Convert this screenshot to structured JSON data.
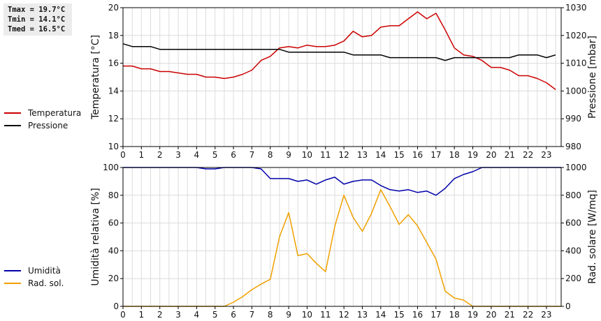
{
  "stats": {
    "tmax": "Tmax = 19.7°C",
    "tmin": "Tmin = 14.1°C",
    "tmed": "Tmed = 16.5°C"
  },
  "chart_data": [
    {
      "type": "line",
      "x_ticks": [
        "0",
        "1",
        "2",
        "3",
        "4",
        "5",
        "6",
        "7",
        "8",
        "9",
        "10",
        "11",
        "12",
        "13",
        "14",
        "15",
        "16",
        "17",
        "18",
        "19",
        "20",
        "21",
        "22",
        "23"
      ],
      "xlim": [
        0,
        23.8
      ],
      "ylabel": "Temperatura [°C]",
      "ylim": [
        10,
        20
      ],
      "y_ticks": [
        "10",
        "12",
        "14",
        "16",
        "18",
        "20"
      ],
      "ylabel_right": "Pressione [mbar]",
      "ylim_right": [
        980,
        1030
      ],
      "y_ticks_right": [
        "980",
        "990",
        "1000",
        "1010",
        "1020",
        "1030"
      ],
      "grid": true,
      "legend_position": "left",
      "series": [
        {
          "name": "Temperatura",
          "color": "#cc0000",
          "axis": "left",
          "x": [
            0,
            0.5,
            1,
            1.5,
            2,
            2.5,
            3,
            3.5,
            4,
            4.5,
            5,
            5.5,
            6,
            6.5,
            7,
            7.5,
            8,
            8.5,
            9,
            9.5,
            10,
            10.5,
            11,
            11.5,
            12,
            12.5,
            13,
            13.5,
            14,
            14.5,
            15,
            15.5,
            16,
            16.5,
            17,
            17.5,
            18,
            18.5,
            19,
            19.5,
            20,
            20.5,
            21,
            21.5,
            22,
            22.5,
            23,
            23.5
          ],
          "values": [
            15.8,
            15.8,
            15.6,
            15.6,
            15.4,
            15.4,
            15.3,
            15.2,
            15.2,
            15.0,
            15.0,
            14.9,
            15.0,
            15.2,
            15.5,
            16.2,
            16.5,
            17.1,
            17.2,
            17.1,
            17.3,
            17.2,
            17.2,
            17.3,
            17.6,
            18.3,
            17.9,
            18.0,
            18.6,
            18.7,
            18.7,
            19.2,
            19.7,
            19.2,
            19.6,
            18.4,
            17.1,
            16.6,
            16.5,
            16.2,
            15.7,
            15.7,
            15.5,
            15.1,
            15.1,
            14.9,
            14.6,
            14.1
          ]
        },
        {
          "name": "Pressione",
          "color": "#000000",
          "axis": "right",
          "x": [
            0,
            0.5,
            1,
            1.5,
            2,
            2.5,
            3,
            4,
            5,
            6,
            7,
            8,
            8.5,
            9,
            9.5,
            10,
            11,
            12,
            12.5,
            13,
            14,
            14.5,
            15,
            16,
            17,
            17.5,
            18,
            19,
            20,
            21,
            21.5,
            22,
            22.5,
            23,
            23.5
          ],
          "values": [
            1017,
            1016,
            1016,
            1016,
            1015,
            1015,
            1015,
            1015,
            1015,
            1015,
            1015,
            1015,
            1015,
            1014,
            1014,
            1014,
            1014,
            1014,
            1013,
            1013,
            1013,
            1012,
            1012,
            1012,
            1012,
            1011,
            1012,
            1012,
            1012,
            1012,
            1013,
            1013,
            1013,
            1012,
            1013
          ]
        }
      ]
    },
    {
      "type": "line",
      "x_ticks": [
        "0",
        "1",
        "2",
        "3",
        "4",
        "5",
        "6",
        "7",
        "8",
        "9",
        "10",
        "11",
        "12",
        "13",
        "14",
        "15",
        "16",
        "17",
        "18",
        "19",
        "20",
        "21",
        "22",
        "23"
      ],
      "xlim": [
        0,
        23.8
      ],
      "ylabel": "Umidità relativa [%]",
      "ylim": [
        0,
        100
      ],
      "y_ticks": [
        "0",
        "20",
        "40",
        "60",
        "80",
        "100"
      ],
      "ylabel_right": "Rad. solare [W/mq]",
      "ylim_right": [
        0,
        1000
      ],
      "y_ticks_right": [
        "0",
        "200",
        "400",
        "600",
        "800",
        "1000"
      ],
      "grid": true,
      "legend_position": "left",
      "series": [
        {
          "name": "Umidità",
          "color": "#0000aa",
          "axis": "left",
          "x": [
            0,
            1,
            2,
            3,
            4,
            4.5,
            5,
            5.5,
            6,
            6.5,
            7,
            7.5,
            8,
            8.5,
            9,
            9.5,
            10,
            10.5,
            11,
            11.5,
            12,
            12.5,
            13,
            13.5,
            14,
            14.5,
            15,
            15.5,
            16,
            16.5,
            17,
            17.5,
            18,
            18.5,
            19,
            19.5,
            20,
            21,
            22,
            23,
            23.8
          ],
          "values": [
            100,
            100,
            100,
            100,
            100,
            99,
            99,
            100,
            100,
            100,
            100,
            99,
            92,
            92,
            92,
            90,
            91,
            88,
            91,
            93,
            88,
            90,
            91,
            91,
            87,
            84,
            83,
            84,
            82,
            83,
            80,
            85,
            92,
            95,
            97,
            100,
            100,
            100,
            100,
            100,
            100
          ]
        },
        {
          "name": "Rad. sol.",
          "color": "#f0a000",
          "axis": "right",
          "x": [
            0,
            1,
            2,
            3,
            4,
            5,
            5.5,
            6,
            6.5,
            7,
            7.5,
            8,
            8.5,
            9,
            9.5,
            10,
            10.5,
            11,
            11.5,
            12,
            12.5,
            13,
            13.5,
            14,
            14.5,
            15,
            15.5,
            16,
            16.5,
            17,
            17.5,
            18,
            18.5,
            19,
            19.5,
            20,
            21,
            22,
            23,
            23.8
          ],
          "values": [
            0,
            0,
            0,
            0,
            0,
            0,
            0,
            30,
            70,
            120,
            160,
            195,
            500,
            675,
            365,
            380,
            310,
            250,
            575,
            800,
            640,
            540,
            670,
            840,
            720,
            590,
            660,
            580,
            460,
            340,
            110,
            60,
            45,
            0,
            0,
            0,
            0,
            0,
            0,
            0
          ]
        }
      ]
    }
  ]
}
